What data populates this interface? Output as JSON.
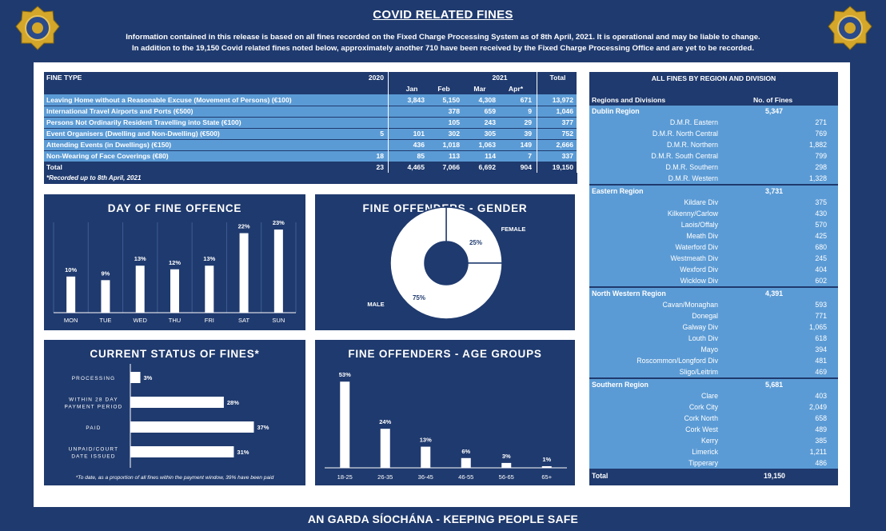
{
  "header": {
    "title": "COVID RELATED FINES",
    "line1": "Information contained in this release is based on all fines recorded on the Fixed Charge Processing System as of 8th April, 2021.  It is operational and may be liable to change.",
    "line2": "In addition to the 19,150 Covid related fines noted below, approximately another 710 have been received by the Fixed Charge Processing Office and are yet to be recorded."
  },
  "footer": "AN GARDA SÍOCHÁNA - KEEPING PEOPLE SAFE",
  "fines_table": {
    "header": {
      "fine_type": "FINE TYPE",
      "y2020": "2020",
      "y2021": "2021",
      "total": "Total"
    },
    "months": [
      "Jan",
      "Feb",
      "Mar",
      "Apr*"
    ],
    "rows": [
      {
        "type": "Leaving Home without a Reasonable Excuse (Movement of Persons) (€100)",
        "y2020": "",
        "jan": "3,843",
        "feb": "5,150",
        "mar": "4,308",
        "apr": "671",
        "total": "13,972"
      },
      {
        "type": "International Travel Airports and Ports (€500)",
        "y2020": "",
        "jan": "",
        "feb": "378",
        "mar": "659",
        "apr": "9",
        "total": "1,046"
      },
      {
        "type": "Persons Not Ordinarily Resident Travelling into State (€100)",
        "y2020": "",
        "jan": "",
        "feb": "105",
        "mar": "243",
        "apr": "29",
        "total": "377"
      },
      {
        "type": "Event Organisers (Dwelling and Non-Dwelling) (€500)",
        "y2020": "5",
        "jan": "101",
        "feb": "302",
        "mar": "305",
        "apr": "39",
        "total": "752"
      },
      {
        "type": "Attending Events (in Dwellings) (€150)",
        "y2020": "",
        "jan": "436",
        "feb": "1,018",
        "mar": "1,063",
        "apr": "149",
        "total": "2,666"
      },
      {
        "type": "Non-Wearing of Face Coverings (€80)",
        "y2020": "18",
        "jan": "85",
        "feb": "113",
        "mar": "114",
        "apr": "7",
        "total": "337"
      }
    ],
    "total_row": {
      "type": "Total",
      "y2020": "23",
      "jan": "4,465",
      "feb": "7,066",
      "mar": "6,692",
      "apr": "904",
      "total": "19,150"
    },
    "note": "*Recorded up to 8th April, 2021"
  },
  "regions_table": {
    "title": "ALL FINES BY REGION AND DIVISION",
    "col_region": "Regions and Divisions",
    "col_fines": "No. of Fines",
    "regions": [
      {
        "name": "Dublin Region",
        "total": "5,347",
        "divisions": [
          {
            "name": "D.M.R. Eastern",
            "value": "271"
          },
          {
            "name": "D.M.R. North Central",
            "value": "769"
          },
          {
            "name": "D.M.R. Northern",
            "value": "1,882"
          },
          {
            "name": "D.M.R. South Central",
            "value": "799"
          },
          {
            "name": "D.M.R. Southern",
            "value": "298"
          },
          {
            "name": "D.M.R. Western",
            "value": "1,328"
          }
        ]
      },
      {
        "name": "Eastern Region",
        "total": "3,731",
        "divisions": [
          {
            "name": "Kildare Div",
            "value": "375"
          },
          {
            "name": "Kilkenny/Carlow",
            "value": "430"
          },
          {
            "name": "Laois/Offaly",
            "value": "570"
          },
          {
            "name": "Meath Div",
            "value": "425"
          },
          {
            "name": "Waterford Div",
            "value": "680"
          },
          {
            "name": "Westmeath Div",
            "value": "245"
          },
          {
            "name": "Wexford Div",
            "value": "404"
          },
          {
            "name": "Wicklow Div",
            "value": "602"
          }
        ]
      },
      {
        "name": "North Western Region",
        "total": "4,391",
        "divisions": [
          {
            "name": "Cavan/Monaghan",
            "value": "593"
          },
          {
            "name": "Donegal",
            "value": "771"
          },
          {
            "name": "Galway Div",
            "value": "1,065"
          },
          {
            "name": "Louth Div",
            "value": "618"
          },
          {
            "name": "Mayo",
            "value": "394"
          },
          {
            "name": "Roscommon/Longford Div",
            "value": "481"
          },
          {
            "name": "Sligo/Leitrim",
            "value": "469"
          }
        ]
      },
      {
        "name": "Southern Region",
        "total": "5,681",
        "divisions": [
          {
            "name": "Clare",
            "value": "403"
          },
          {
            "name": "Cork City",
            "value": "2,049"
          },
          {
            "name": "Cork North",
            "value": "658"
          },
          {
            "name": "Cork West",
            "value": "489"
          },
          {
            "name": "Kerry",
            "value": "385"
          },
          {
            "name": "Limerick",
            "value": "1,211"
          },
          {
            "name": "Tipperary",
            "value": "486"
          }
        ]
      }
    ],
    "total_label": "Total",
    "total_value": "19,150"
  },
  "colors": {
    "navy": "#1f3a6e",
    "light_blue": "#5b9bd5",
    "white": "#ffffff",
    "badge_gold": "#d4a62a"
  },
  "icons": {
    "badge_left": "garda-crest",
    "badge_right": "garda-crest"
  },
  "chart_data": [
    {
      "type": "bar",
      "title": "DAY OF FINE OFFENCE",
      "categories": [
        "MON",
        "TUE",
        "WED",
        "THU",
        "FRI",
        "SAT",
        "SUN"
      ],
      "values": [
        10,
        9,
        13,
        12,
        13,
        22,
        23
      ],
      "data_labels": [
        "10%",
        "9%",
        "13%",
        "12%",
        "13%",
        "22%",
        "23%"
      ],
      "ylim": [
        0,
        25
      ],
      "grid": "vertical"
    },
    {
      "type": "pie",
      "title": "FINE OFFENDERS - GENDER",
      "categories": [
        "FEMALE",
        "MALE"
      ],
      "values": [
        25,
        75
      ],
      "data_labels": [
        "25%",
        "75%"
      ]
    },
    {
      "type": "bar",
      "orientation": "horizontal",
      "title": "CURRENT STATUS OF FINES*",
      "categories": [
        "PROCESSING",
        "WITHIN 28 DAY PAYMENT PERIOD",
        "PAID",
        "UNPAID/COURT DATE ISSUED"
      ],
      "values": [
        3,
        28,
        37,
        31
      ],
      "data_labels": [
        "3%",
        "28%",
        "37%",
        "31%"
      ],
      "xlim": [
        0,
        40
      ],
      "footnote": "*To date, as a proportion of all fines within the payment window, 39% have been paid"
    },
    {
      "type": "bar",
      "title": "FINE OFFENDERS - AGE GROUPS",
      "categories": [
        "18-25",
        "26-35",
        "36-45",
        "46-55",
        "56-65",
        "65+"
      ],
      "values": [
        53,
        24,
        13,
        6,
        3,
        1
      ],
      "data_labels": [
        "53%",
        "24%",
        "13%",
        "6%",
        "3%",
        "1%"
      ],
      "ylim": [
        0,
        60
      ]
    }
  ]
}
